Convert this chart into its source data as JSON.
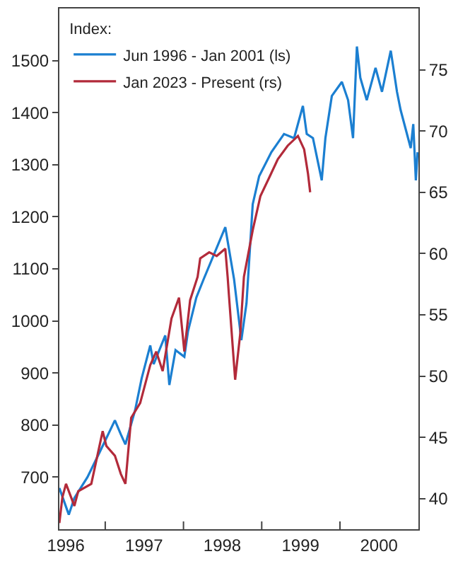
{
  "chart_data": {
    "type": "line",
    "legend_title": "Index:",
    "legend": "top left",
    "grid": false,
    "marker": "none",
    "line_style": "solid",
    "xlim": [
      "1996-06-01",
      "2001-01-01"
    ],
    "xticks": [
      {
        "value": "1996-07-01",
        "label": "1996"
      },
      {
        "value": "1997-07-01",
        "label": "1997"
      },
      {
        "value": "1998-07-01",
        "label": "1998"
      },
      {
        "value": "1999-07-01",
        "label": "1999"
      },
      {
        "value": "2000-07-01",
        "label": "2000"
      },
      {
        "value": "1997-01-01",
        "label": null
      },
      {
        "value": "1998-01-01",
        "label": null
      },
      {
        "value": "1999-01-01",
        "label": null
      },
      {
        "value": "2000-01-01",
        "label": null
      }
    ],
    "ylim": [
      600,
      1600
    ],
    "yticks": [
      700,
      800,
      900,
      1000,
      1100,
      1200,
      1300,
      1400,
      1500
    ],
    "y2lim": [
      37.5,
      80
    ],
    "y2ticks": [
      40,
      45,
      50,
      55,
      60,
      65,
      70,
      75
    ],
    "series": [
      {
        "name": "Jun 1996 - Jan 2001 (ls)",
        "color": "#1b7fd1",
        "x": [
          "1996-06-01",
          "1996-07-15",
          "1996-08-10",
          "1996-10-10",
          "1996-12-05",
          "1997-02-15",
          "1997-03-15",
          "1997-04-05",
          "1997-05-20",
          "1997-06-20",
          "1997-07-30",
          "1997-08-15",
          "1997-10-08",
          "1997-10-27",
          "1997-11-25",
          "1998-01-05",
          "1998-01-22",
          "1998-03-02",
          "1998-04-05",
          "1998-07-15",
          "1998-08-25",
          "1998-09-28",
          "1998-10-22",
          "1998-11-20",
          "1998-12-20",
          "1999-02-15",
          "1999-04-15",
          "1999-06-01",
          "1999-07-12",
          "1999-07-30",
          "1999-08-28",
          "1999-10-08",
          "1999-10-25",
          "1999-11-24",
          "2000-01-10",
          "2000-02-08",
          "2000-03-02",
          "2000-03-20",
          "2000-04-05",
          "2000-05-05",
          "2000-06-15",
          "2000-07-15",
          "2000-08-25",
          "2000-09-23",
          "2000-10-10",
          "2000-11-26",
          "2000-12-08",
          "2000-12-20",
          "2000-12-28"
        ],
        "values": [
          679,
          628,
          660,
          700,
          747,
          809,
          782,
          763,
          828,
          890,
          953,
          917,
          972,
          877,
          944,
          931,
          980,
          1045,
          1080,
          1180,
          1080,
          963,
          1034,
          1224,
          1278,
          1324,
          1359,
          1351,
          1413,
          1359,
          1351,
          1270,
          1351,
          1432,
          1459,
          1424,
          1351,
          1527,
          1467,
          1424,
          1486,
          1440,
          1519,
          1440,
          1405,
          1332,
          1378,
          1270,
          1324
        ]
      },
      {
        "name": "Jan 2023 - Present (rs)",
        "color": "#b22a3a",
        "axis": "y2",
        "x": [
          "1996-06-01",
          "1996-06-15",
          "1996-07-02",
          "1996-08-10",
          "1996-08-28",
          "1996-10-28",
          "1996-12-20",
          "1997-01-06",
          "1997-02-15",
          "1997-03-15",
          "1997-04-05",
          "1997-05-02",
          "1997-06-13",
          "1997-07-30",
          "1997-08-27",
          "1997-09-26",
          "1997-11-06",
          "1997-12-11",
          "1998-01-05",
          "1998-02-01",
          "1998-03-08",
          "1998-03-20",
          "1998-05-01",
          "1998-06-05",
          "1998-07-15",
          "1998-07-26",
          "1998-08-01",
          "1998-08-30",
          "1998-09-23",
          "1998-10-10",
          "1998-11-20",
          "1998-12-26",
          "1999-02-05",
          "1999-03-17",
          "1999-05-02",
          "1999-06-19",
          "1999-07-18",
          "1999-08-05",
          "1999-08-15"
        ],
        "values": [
          38.0,
          40.1,
          41.2,
          39.4,
          40.6,
          41.2,
          45.5,
          44.3,
          43.5,
          42.0,
          41.2,
          46.6,
          47.8,
          50.9,
          52.0,
          50.4,
          54.7,
          56.4,
          52.0,
          56.2,
          58.1,
          59.6,
          60.1,
          59.8,
          60.4,
          58.1,
          56.6,
          49.7,
          53.5,
          58.1,
          61.9,
          64.7,
          66.2,
          67.7,
          68.8,
          69.6,
          68.5,
          66.5,
          65.0
        ]
      }
    ]
  }
}
